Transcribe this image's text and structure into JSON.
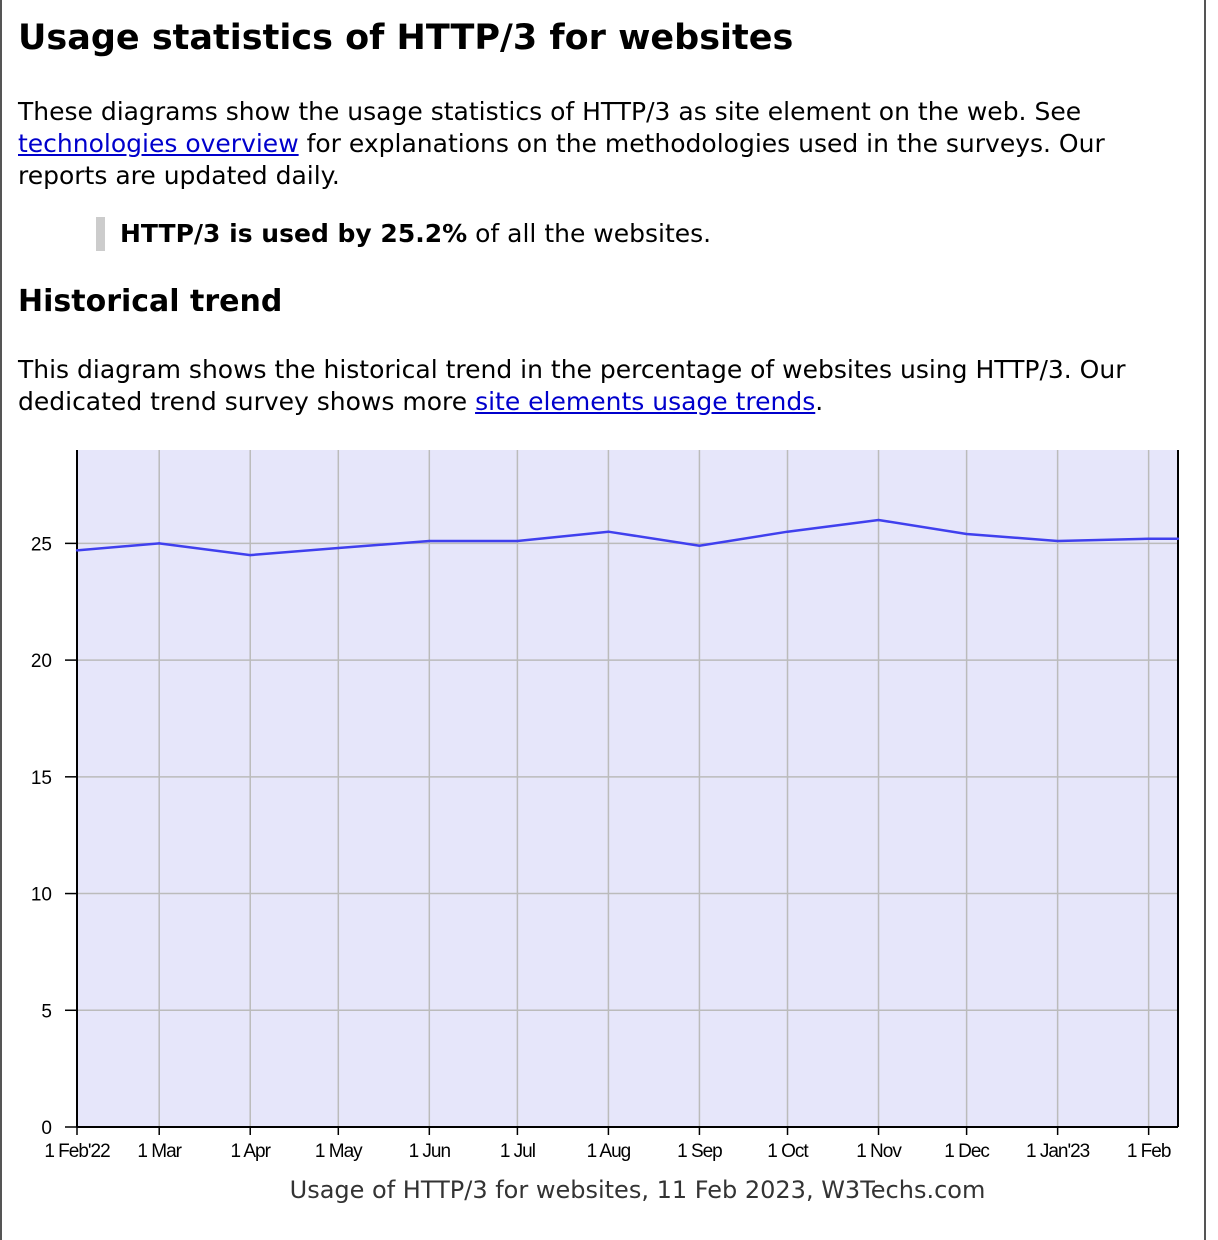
{
  "page": {
    "title": "Usage statistics of HTTP/3 for websites",
    "intro_before_link": "These diagrams show the usage statistics of HTTP/3 as site element on the web. See ",
    "intro_link": "technologies overview",
    "intro_after_link": " for explanations on the methodologies used in the surveys. Our reports are updated daily.",
    "callout_bold": "HTTP/3 is used by 25.2%",
    "callout_rest": " of all the websites.",
    "section_title": "Historical trend",
    "trend_before_link": "This diagram shows the historical trend in the percentage of websites using HTTP/3. Our dedicated trend survey shows more ",
    "trend_link": "site elements usage trends",
    "trend_after_link": "."
  },
  "chart_data": {
    "type": "area",
    "caption": "Usage of HTTP/3 for websites, 11 Feb 2023, W3Techs.com",
    "x": [
      "2022-02-01",
      "2022-03-01",
      "2022-04-01",
      "2022-05-01",
      "2022-06-01",
      "2022-07-01",
      "2022-08-01",
      "2022-09-01",
      "2022-10-01",
      "2022-11-01",
      "2022-12-01",
      "2023-01-01",
      "2023-02-01",
      "2023-02-11"
    ],
    "series": [
      {
        "values": [
          24.7,
          25.0,
          24.5,
          24.8,
          25.1,
          25.1,
          25.5,
          24.9,
          25.5,
          26.0,
          25.4,
          25.1,
          25.2,
          25.2
        ]
      }
    ],
    "x_tick_labels": [
      "1 Feb'22",
      "1 Mar",
      "1 Apr",
      "1 May",
      "1 Jun",
      "1 Jul",
      "1 Aug",
      "1 Sep",
      "1 Oct",
      "1 Nov",
      "1 Dec",
      "1 Jan'23",
      "1 Feb"
    ],
    "x_tick_dates": [
      "2022-02-01",
      "2022-03-01",
      "2022-04-01",
      "2022-05-01",
      "2022-06-01",
      "2022-07-01",
      "2022-08-01",
      "2022-09-01",
      "2022-10-01",
      "2022-11-01",
      "2022-12-01",
      "2023-01-01",
      "2023-02-01"
    ],
    "xlim": [
      "2022-02-01",
      "2023-02-11"
    ],
    "y_ticks": [
      0,
      5,
      10,
      15,
      20,
      25
    ],
    "ylim": [
      0,
      29
    ],
    "grid": true,
    "line_color": "#4040ee",
    "plot_background": "#e6e6fa",
    "grid_color": "#bbbbbb"
  }
}
